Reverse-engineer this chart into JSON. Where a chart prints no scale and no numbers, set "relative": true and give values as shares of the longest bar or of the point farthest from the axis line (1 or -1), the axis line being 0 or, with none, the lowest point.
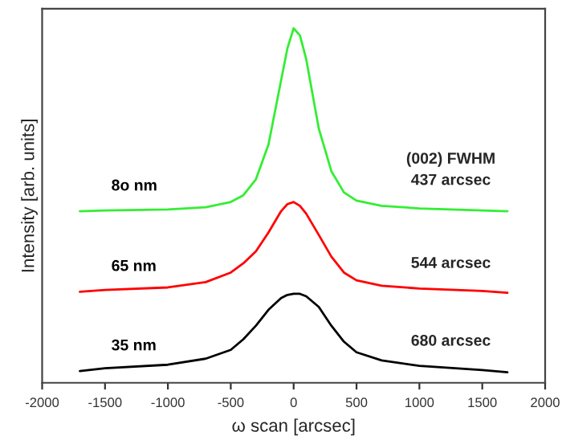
{
  "chart_data": {
    "type": "line",
    "relative": true,
    "xlabel": "ω scan [arcsec]",
    "ylabel": "Intensity [arb. units]",
    "xlim": [
      -2000,
      2000
    ],
    "xticks": [
      -2000,
      -1500,
      -1000,
      -500,
      0,
      500,
      1000,
      1500,
      2000
    ],
    "grid": false,
    "legend": false,
    "marker": "none",
    "line_style": "solid",
    "x": [
      -1700,
      -1500,
      -1000,
      -700,
      -500,
      -400,
      -300,
      -200,
      -100,
      -50,
      0,
      50,
      100,
      200,
      300,
      400,
      500,
      700,
      1000,
      1500,
      1700
    ],
    "series": [
      {
        "name": "35 nm",
        "color": "#000000",
        "values": [
          0.033,
          0.041,
          0.051,
          0.068,
          0.093,
          0.123,
          0.161,
          0.206,
          0.239,
          0.248,
          0.251,
          0.251,
          0.244,
          0.214,
          0.161,
          0.116,
          0.086,
          0.063,
          0.048,
          0.036,
          0.03
        ]
      },
      {
        "name": "65 nm",
        "color": "#ff0000",
        "values": [
          0.257,
          0.262,
          0.269,
          0.284,
          0.311,
          0.337,
          0.371,
          0.424,
          0.484,
          0.504,
          0.51,
          0.499,
          0.477,
          0.417,
          0.356,
          0.311,
          0.289,
          0.274,
          0.266,
          0.259,
          0.254
        ]
      },
      {
        "name": "8o nm",
        "color": "#33ee33",
        "values": [
          0.484,
          0.486,
          0.489,
          0.495,
          0.51,
          0.529,
          0.574,
          0.672,
          0.853,
          0.943,
          1.0,
          0.98,
          0.913,
          0.717,
          0.597,
          0.537,
          0.514,
          0.499,
          0.492,
          0.486,
          0.484
        ]
      }
    ],
    "annotations": [
      "(002) FWHM",
      "437 arcsec",
      "544 arcsec",
      "680 arcsec"
    ]
  }
}
